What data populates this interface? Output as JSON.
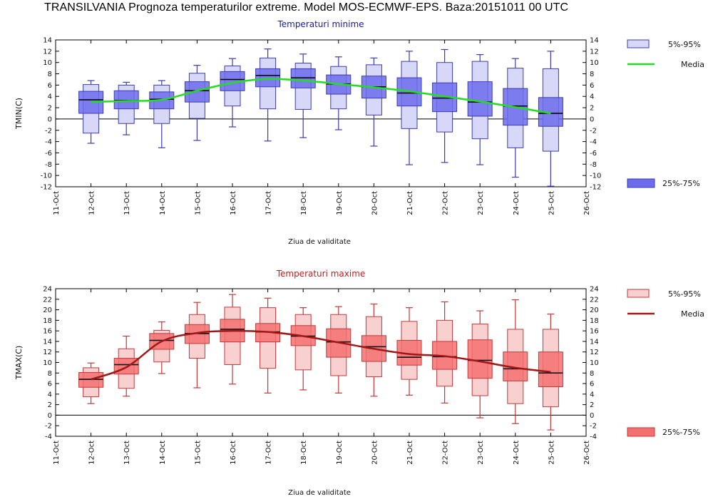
{
  "title": "TRANSILVANIA  Prognoza temperaturilor extreme.  Model MOS-ECMWF-EPS. Baza:20151011 00 UTC",
  "chart_data": [
    {
      "type": "box",
      "title": "Temperaturi minime",
      "ylabel": "TMIN(C)",
      "xlabel": "Ziua de validitate",
      "ylim": [
        -12,
        14
      ],
      "yticks": [
        -12,
        -10,
        -8,
        -6,
        -4,
        -2,
        0,
        2,
        4,
        6,
        8,
        10,
        12,
        14
      ],
      "x_ticks": [
        "11-Oct",
        "12-Oct",
        "13-Oct",
        "14-Oct",
        "15-Oct",
        "16-Oct",
        "17-Oct",
        "18-Oct",
        "19-Oct",
        "20-Oct",
        "21-Oct",
        "22-Oct",
        "23-Oct",
        "24-Oct",
        "25-Oct",
        "26-Oct"
      ],
      "categories": [
        "12-Oct",
        "13-Oct",
        "14-Oct",
        "15-Oct",
        "16-Oct",
        "17-Oct",
        "18-Oct",
        "19-Oct",
        "20-Oct",
        "21-Oct",
        "22-Oct",
        "23-Oct",
        "24-Oct",
        "25-Oct"
      ],
      "min": [
        -4.3,
        -2.8,
        -5.1,
        -3.8,
        -1.4,
        -3.9,
        -3.3,
        -1.9,
        -4.8,
        -8.1,
        -7.7,
        -8.1,
        -10.3,
        -11.9
      ],
      "p5": [
        -2.5,
        -0.8,
        -0.8,
        0.1,
        2.3,
        1.8,
        1.7,
        1.8,
        0.7,
        -1.7,
        -2.3,
        -3.5,
        -5.1,
        -5.7
      ],
      "p25": [
        1.0,
        1.8,
        1.8,
        3.0,
        5.0,
        5.7,
        5.5,
        4.4,
        3.7,
        2.3,
        1.3,
        0.5,
        -1.1,
        -1.3
      ],
      "median": [
        3.4,
        3.3,
        3.5,
        5.0,
        7.0,
        7.7,
        7.3,
        6.2,
        5.7,
        4.6,
        3.7,
        3.0,
        2.3,
        1.0
      ],
      "p75": [
        4.9,
        5.0,
        4.8,
        6.6,
        8.4,
        8.9,
        8.9,
        7.8,
        7.6,
        7.3,
        6.4,
        6.6,
        5.4,
        3.8
      ],
      "p95": [
        6.1,
        6.0,
        6.0,
        8.1,
        9.4,
        10.8,
        9.9,
        9.3,
        9.6,
        10.2,
        10.0,
        10.2,
        9.0,
        8.9
      ],
      "max": [
        6.8,
        6.5,
        6.8,
        9.5,
        10.7,
        12.4,
        11.5,
        11.0,
        10.8,
        12.0,
        12.3,
        11.4,
        10.7,
        12.0
      ],
      "media": [
        3.0,
        3.2,
        3.4,
        5.0,
        6.4,
        7.1,
        6.8,
        6.2,
        5.6,
        4.9,
        4.0,
        3.1,
        2.1,
        1.0
      ],
      "legend": {
        "outer_label": "5%-95%",
        "inner_label": "25%-75%",
        "line_label": "Media"
      },
      "colors": {
        "outer_fill": "#d7d7f7",
        "inner_fill": "#6c6cec",
        "edge": "#3c3cb0",
        "line": "#22dd22"
      }
    },
    {
      "type": "box",
      "title": "Temperaturi maxime",
      "ylabel": "TMAX(C)",
      "xlabel": "Ziua de validitate",
      "ylim": [
        -4,
        24
      ],
      "yticks": [
        -4,
        -2,
        0,
        2,
        4,
        6,
        8,
        10,
        12,
        14,
        16,
        18,
        20,
        22,
        24
      ],
      "x_ticks": [
        "11-Oct",
        "12-Oct",
        "13-Oct",
        "14-Oct",
        "15-Oct",
        "16-Oct",
        "17-Oct",
        "18-Oct",
        "19-Oct",
        "20-Oct",
        "21-Oct",
        "22-Oct",
        "23-Oct",
        "24-Oct",
        "25-Oct",
        "26-Oct"
      ],
      "categories": [
        "12-Oct",
        "13-Oct",
        "14-Oct",
        "15-Oct",
        "16-Oct",
        "17-Oct",
        "18-Oct",
        "19-Oct",
        "20-Oct",
        "21-Oct",
        "22-Oct",
        "23-Oct",
        "24-Oct",
        "25-Oct"
      ],
      "min": [
        2.2,
        3.6,
        7.9,
        5.2,
        5.9,
        4.2,
        4.8,
        4.2,
        3.6,
        3.8,
        2.3,
        -0.5,
        -1.6,
        -2.8
      ],
      "p5": [
        3.5,
        5.1,
        10.1,
        10.8,
        9.6,
        8.9,
        8.6,
        7.5,
        7.3,
        6.8,
        5.5,
        3.7,
        2.2,
        1.6
      ],
      "p25": [
        5.3,
        7.8,
        12.5,
        13.6,
        13.9,
        13.9,
        13.2,
        11.0,
        10.2,
        9.5,
        8.7,
        7.0,
        6.5,
        5.4
      ],
      "median": [
        6.8,
        9.6,
        14.2,
        15.5,
        16.3,
        15.8,
        15.0,
        13.9,
        13.0,
        11.0,
        11.1,
        10.4,
        8.8,
        8.0
      ],
      "p75": [
        8.1,
        10.8,
        15.5,
        17.2,
        18.2,
        17.4,
        17.0,
        16.4,
        15.1,
        14.2,
        14.0,
        14.3,
        12.0,
        12.0
      ],
      "p95": [
        9.0,
        12.6,
        16.1,
        19.1,
        20.5,
        20.4,
        19.1,
        19.1,
        18.7,
        17.8,
        18.0,
        17.3,
        16.3,
        16.3
      ],
      "max": [
        9.9,
        15.0,
        17.7,
        21.4,
        22.9,
        22.2,
        20.4,
        20.6,
        21.1,
        20.4,
        21.5,
        19.8,
        21.9,
        19.2
      ],
      "media": [
        6.8,
        9.1,
        14.0,
        15.6,
        16.0,
        15.8,
        15.0,
        13.8,
        12.6,
        11.6,
        11.2,
        10.2,
        9.0,
        8.2
      ],
      "legend": {
        "outer_label": "5%-95%",
        "inner_label": "25%-75%",
        "line_label": "Media"
      },
      "colors": {
        "outer_fill": "#f8d0d0",
        "inner_fill": "#f47070",
        "edge": "#c03a3a",
        "line": "#a01818"
      }
    }
  ]
}
